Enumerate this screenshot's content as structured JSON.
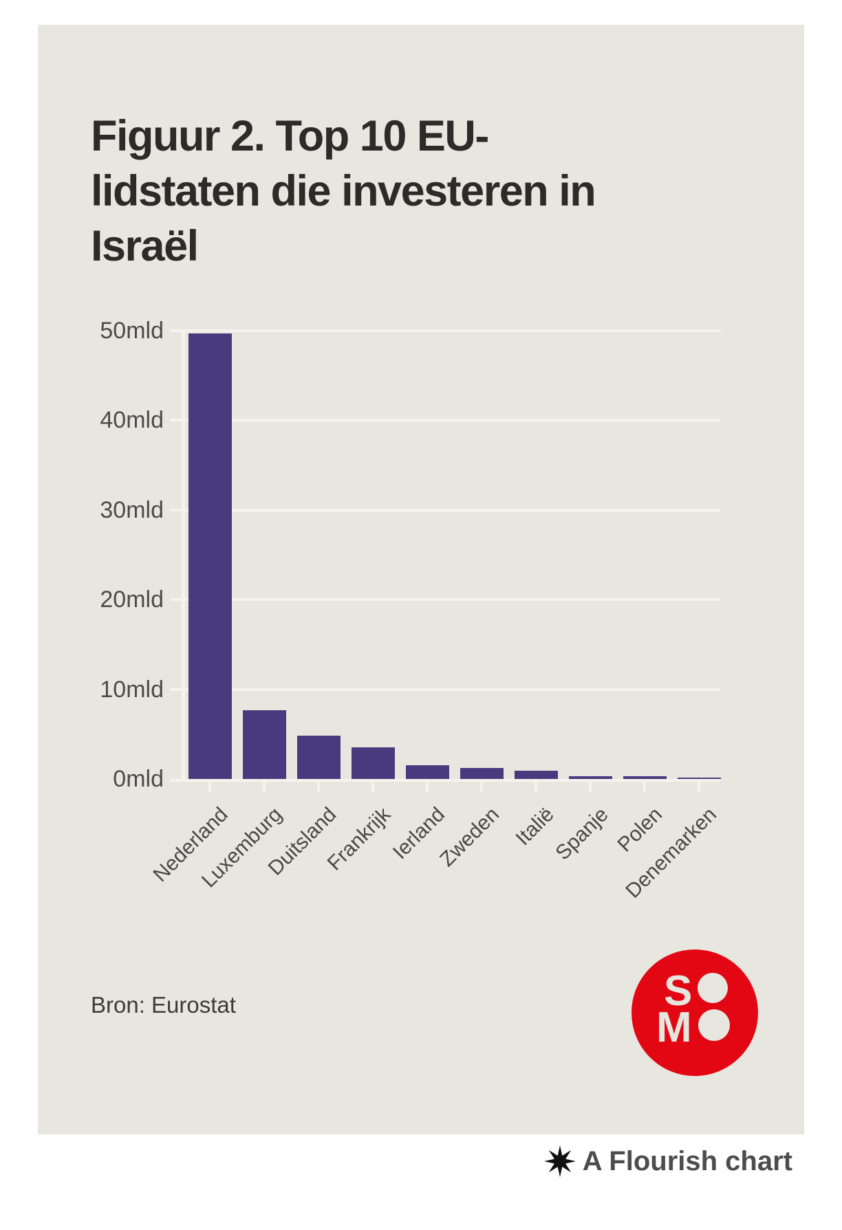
{
  "title": {
    "text": "Figuur 2. Top 10 EU-lidstaten die investeren in Israël",
    "lines": [
      "Figuur 2. Top 10 EU-",
      "lidstaten die investeren in",
      "Israël"
    ]
  },
  "source": {
    "label": "Bron: Eurostat"
  },
  "footer": {
    "label": "A Flourish chart",
    "icon": "flourish-asterisk-icon"
  },
  "logo": {
    "name": "SOMO",
    "line1": "SO",
    "line2": "MO"
  },
  "colors": {
    "page_bg": "#ffffff",
    "card_bg": "#e8e7df",
    "bar": "#493a7e",
    "grid": "#f4f3ee",
    "title_text": "#2d2b29",
    "axis_text": "#4b4b4b",
    "source_text": "#3b3b3b",
    "footer_text": "#4d4d4d",
    "logo_red": "#e30613",
    "asterisk_black": "#111111"
  },
  "chart_data": {
    "type": "bar",
    "title": "Figuur 2. Top 10 EU-lidstaten die investeren in Israël",
    "source": "Bron: Eurostat",
    "categories": [
      "Nederland",
      "Luxemburg",
      "Duitsland",
      "Frankrijk",
      "Ierland",
      "Zweden",
      "Italië",
      "Spanje",
      "Polen",
      "Denemarken"
    ],
    "values": [
      49.7,
      7.7,
      4.8,
      3.5,
      1.5,
      1.2,
      0.9,
      0.3,
      0.3,
      0.15
    ],
    "unit": "mld",
    "xlabel": "",
    "ylabel": "",
    "ylim": [
      0,
      50
    ],
    "yticks": [
      0,
      10,
      20,
      30,
      40,
      50
    ],
    "ytick_format": "{value}mld",
    "xtick_rotation": -45,
    "grid": true,
    "legend": "none",
    "bar_color": "#493a7e"
  }
}
